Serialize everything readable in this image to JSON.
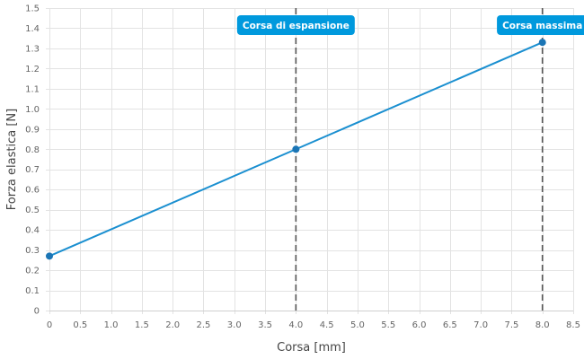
{
  "chart_data": {
    "type": "line",
    "title": "",
    "xlabel": "Corsa [mm]",
    "ylabel": "Forza elastica [N]",
    "xlim": [
      0,
      8.5
    ],
    "ylim": [
      0,
      1.5
    ],
    "x_ticks": [
      "0",
      "0.5",
      "1.0",
      "1.5",
      "2.0",
      "2.5",
      "3.0",
      "3.5",
      "4.0",
      "4.5",
      "5.0",
      "5.5",
      "6.0",
      "6.5",
      "7.0",
      "7.5",
      "8.0",
      "8.5"
    ],
    "y_ticks": [
      "0",
      "0.1",
      "0.2",
      "0.3",
      "0.4",
      "0.5",
      "0.6",
      "0.7",
      "0.8",
      "0.9",
      "1.0",
      "1.1",
      "1.2",
      "1.3",
      "1.4",
      "1.5"
    ],
    "grid": true,
    "series": [
      {
        "color": "#1a8fd0",
        "points": [
          {
            "x": 0,
            "y": 0.27
          },
          {
            "x": 4.0,
            "y": 0.8
          },
          {
            "x": 8.0,
            "y": 1.33
          }
        ]
      }
    ],
    "annotations": [
      {
        "x": 4.0,
        "label": "Corsa di espansione",
        "line_style": "dashed",
        "label_color": "#0099dd"
      },
      {
        "x": 8.0,
        "label": "Corsa massima",
        "line_style": "dashed",
        "label_color": "#0099dd"
      }
    ]
  }
}
